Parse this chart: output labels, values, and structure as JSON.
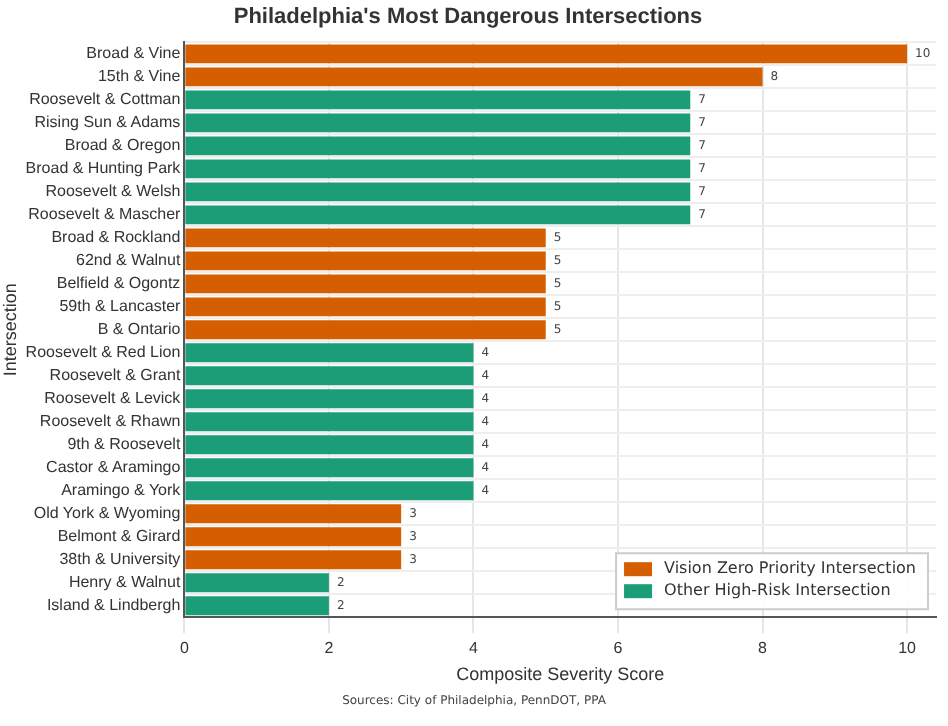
{
  "chart_data": {
    "type": "bar",
    "orientation": "horizontal",
    "title": "Philadelphia's Most Dangerous Intersections",
    "xlabel": "Composite Severity Score",
    "ylabel": "Intersection",
    "categories": [
      "Broad & Vine",
      "15th & Vine",
      "Roosevelt & Cottman",
      "Rising Sun & Adams",
      "Broad & Oregon",
      "Broad & Hunting Park",
      "Roosevelt & Welsh",
      "Roosevelt & Mascher",
      "Broad & Rockland",
      "62nd & Walnut",
      "Belfield & Ogontz",
      "59th & Lancaster",
      "B & Ontario",
      "Roosevelt & Red Lion",
      "Roosevelt & Grant",
      "Roosevelt & Levick",
      "Roosevelt & Rhawn",
      "9th & Roosevelt",
      "Castor & Aramingo",
      "Aramingo & York",
      "Old York & Wyoming",
      "Belmont & Girard",
      "38th & University",
      "Henry & Walnut",
      "Island & Lindbergh"
    ],
    "series": [
      {
        "name": "Vision Zero Priority Intersection",
        "color": "#d55e00",
        "values": [
          10,
          8,
          null,
          null,
          null,
          null,
          null,
          null,
          5,
          5,
          5,
          5,
          5,
          null,
          null,
          null,
          null,
          null,
          null,
          null,
          3,
          3,
          3,
          null,
          null
        ]
      },
      {
        "name": "Other High-Risk Intersection",
        "color": "#1b9e77",
        "values": [
          null,
          null,
          7,
          7,
          7,
          7,
          7,
          7,
          null,
          null,
          null,
          null,
          null,
          4,
          4,
          4,
          4,
          4,
          4,
          4,
          null,
          null,
          null,
          2,
          2
        ]
      }
    ],
    "xlim": [
      0,
      10.4
    ],
    "xticks": [
      0,
      2,
      4,
      6,
      8,
      10
    ],
    "grid": true,
    "legend": "bottom right",
    "data_labels": true,
    "annotations": [
      "Sources: City of Philadelphia, PennDOT, PPA"
    ]
  }
}
